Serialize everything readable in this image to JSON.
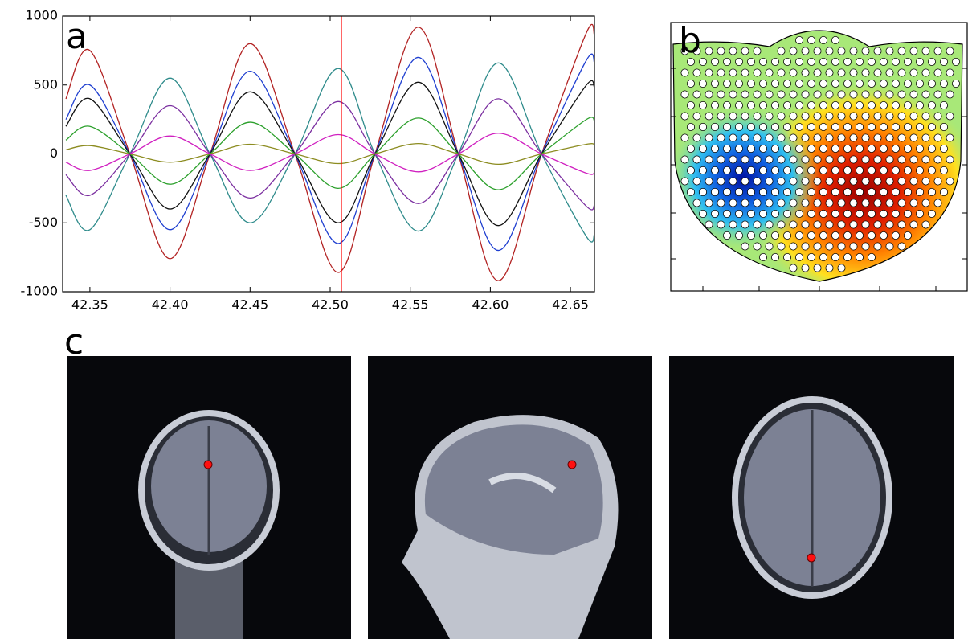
{
  "chart_data": {
    "type": "line",
    "panel_label": "a",
    "x": [
      42.335,
      42.35,
      42.375,
      42.4,
      42.425,
      42.45,
      42.478,
      42.505,
      42.528,
      42.555,
      42.58,
      42.605,
      42.632,
      42.66,
      42.665
    ],
    "series": [
      {
        "color": "#b22222",
        "values": [
          400,
          750,
          0,
          -760,
          0,
          800,
          0,
          -860,
          0,
          920,
          0,
          -920,
          0,
          880,
          860
        ]
      },
      {
        "color": "#2e8b8b",
        "values": [
          -300,
          -550,
          0,
          550,
          0,
          -500,
          0,
          620,
          0,
          -560,
          0,
          660,
          0,
          -600,
          -580
        ]
      },
      {
        "color": "#1f3fd0",
        "values": [
          250,
          500,
          0,
          -550,
          0,
          600,
          0,
          -650,
          0,
          700,
          0,
          -700,
          0,
          680,
          660
        ]
      },
      {
        "color": "#111111",
        "values": [
          200,
          400,
          0,
          -400,
          0,
          450,
          0,
          -500,
          0,
          520,
          0,
          -520,
          0,
          500,
          480
        ]
      },
      {
        "color": "#7b2fa0",
        "values": [
          -150,
          -300,
          0,
          350,
          0,
          -320,
          0,
          380,
          0,
          -360,
          0,
          400,
          0,
          -380,
          -370
        ]
      },
      {
        "color": "#2ca02c",
        "values": [
          100,
          200,
          0,
          -220,
          0,
          230,
          0,
          -250,
          0,
          260,
          0,
          -260,
          0,
          250,
          240
        ]
      },
      {
        "color": "#d020c0",
        "values": [
          -60,
          -120,
          0,
          130,
          0,
          -120,
          0,
          140,
          0,
          -130,
          0,
          150,
          0,
          -140,
          -135
        ]
      },
      {
        "color": "#8c8c20",
        "values": [
          30,
          60,
          0,
          -60,
          0,
          70,
          0,
          -70,
          0,
          75,
          0,
          -75,
          0,
          70,
          68
        ]
      }
    ],
    "marker_x": 42.507,
    "marker_color": "#ff0000",
    "xlim": [
      42.333,
      42.665
    ],
    "ylim": [
      -1000,
      1000
    ],
    "xticks": [
      42.35,
      {
        "value": 42.4,
        "label": "42.40"
      },
      42.45,
      {
        "value": 42.5,
        "label": "42.50"
      },
      42.55,
      {
        "value": 42.6,
        "label": "42.60"
      },
      42.65
    ],
    "yticks": [
      -1000,
      -500,
      0,
      500,
      1000
    ]
  },
  "panels": {
    "b": {
      "label": "b"
    },
    "c": {
      "label": "c"
    }
  }
}
